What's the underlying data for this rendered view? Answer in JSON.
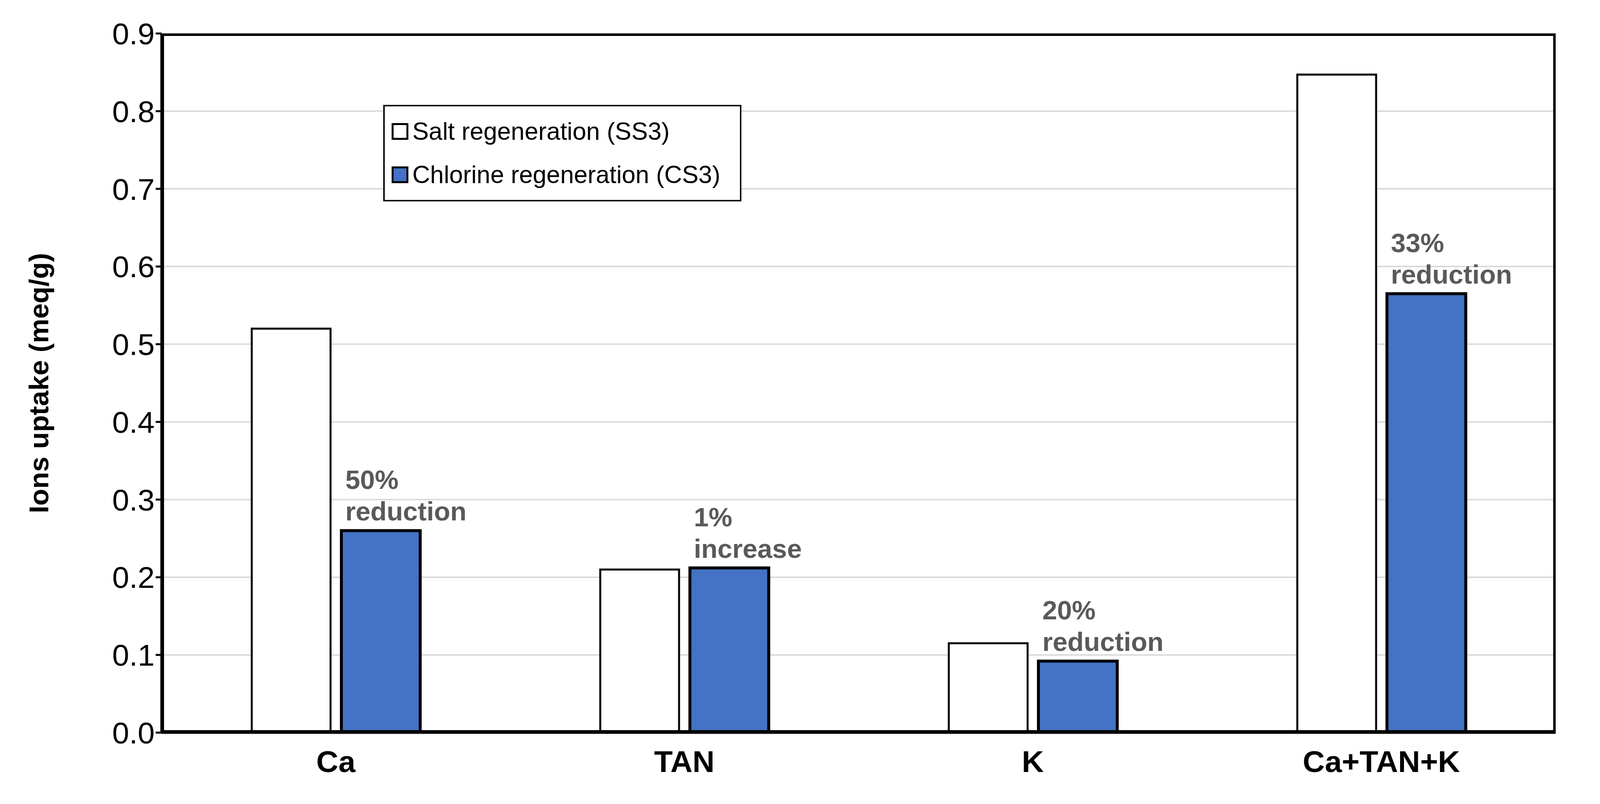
{
  "chart_data": {
    "type": "bar",
    "categories": [
      "Ca",
      "TAN",
      "K",
      "Ca+TAN+K"
    ],
    "series": [
      {
        "name": "Salt regeneration (SS3)",
        "color": "#ffffff",
        "values": [
          0.52,
          0.21,
          0.115,
          0.847
        ]
      },
      {
        "name": "Chlorine regeneration (CS3)",
        "color": "#4472c4",
        "values": [
          0.26,
          0.212,
          0.092,
          0.565
        ]
      }
    ],
    "annotations": [
      "50% reduction",
      "1% increase",
      "20% reduction",
      "33% reduction"
    ],
    "y_label": "Ions uptake (meq/g)",
    "ylim": [
      0,
      0.9
    ],
    "yticks": [
      {
        "value": 0,
        "label": "0.0"
      },
      0.1,
      0.2,
      0.3,
      0.4,
      0.5,
      0.6,
      0.7,
      0.8,
      0.9
    ],
    "grid": true,
    "legend": "upper left"
  }
}
